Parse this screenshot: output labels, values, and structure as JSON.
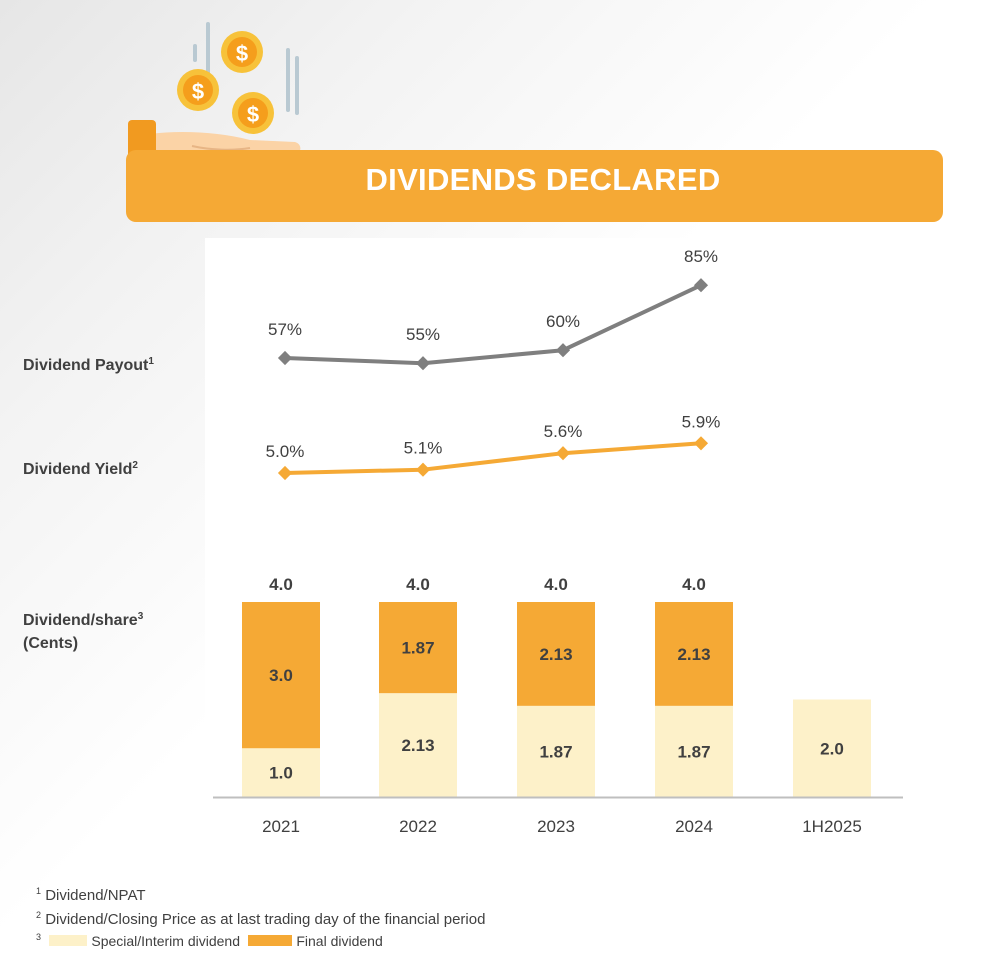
{
  "header": {
    "title": "DIVIDENDS DECLARED",
    "illustration": "hand-with-coins-icon"
  },
  "row_labels": {
    "payout": "Dividend Payout",
    "payout_note": "1",
    "yield": "Dividend Yield",
    "yield_note": "2",
    "dps": "Dividend/share",
    "dps_note": "3",
    "dps_unit": "(Cents)"
  },
  "footnotes": {
    "n1": "1",
    "t1": "Dividend/NPAT",
    "n2": "2",
    "t2": "Dividend/Closing Price as at last trading day of the financial period",
    "n3": "3",
    "legend_interim": "Special/Interim dividend",
    "legend_final": "Final dividend"
  },
  "colors": {
    "orange": "#f5a935",
    "cream": "#fdf1c9",
    "gray_line": "#7f7f7f"
  },
  "chart_data": {
    "categories": [
      "2021",
      "2022",
      "2023",
      "2024",
      "1H2025"
    ],
    "payout": {
      "type": "line",
      "values": [
        57,
        55,
        60,
        85
      ],
      "labels": [
        "57%",
        "55%",
        "60%",
        "85%"
      ]
    },
    "yield": {
      "type": "line",
      "values": [
        5.0,
        5.1,
        5.6,
        5.9
      ],
      "labels": [
        "5.0%",
        "5.1%",
        "5.6%",
        "5.9%"
      ]
    },
    "dividend_per_share": {
      "type": "bar",
      "stacked": true,
      "series": [
        {
          "name": "Special/Interim dividend",
          "values": [
            1.0,
            2.13,
            1.87,
            1.87,
            2.0
          ],
          "labels": [
            "1.0",
            "2.13",
            "1.87",
            "1.87",
            "2.0"
          ]
        },
        {
          "name": "Final dividend",
          "values": [
            3.0,
            1.87,
            2.13,
            2.13,
            null
          ],
          "labels": [
            "3.0",
            "1.87",
            "2.13",
            "2.13",
            ""
          ]
        }
      ],
      "totals": [
        "4.0",
        "4.0",
        "4.0",
        "4.0",
        ""
      ]
    }
  }
}
